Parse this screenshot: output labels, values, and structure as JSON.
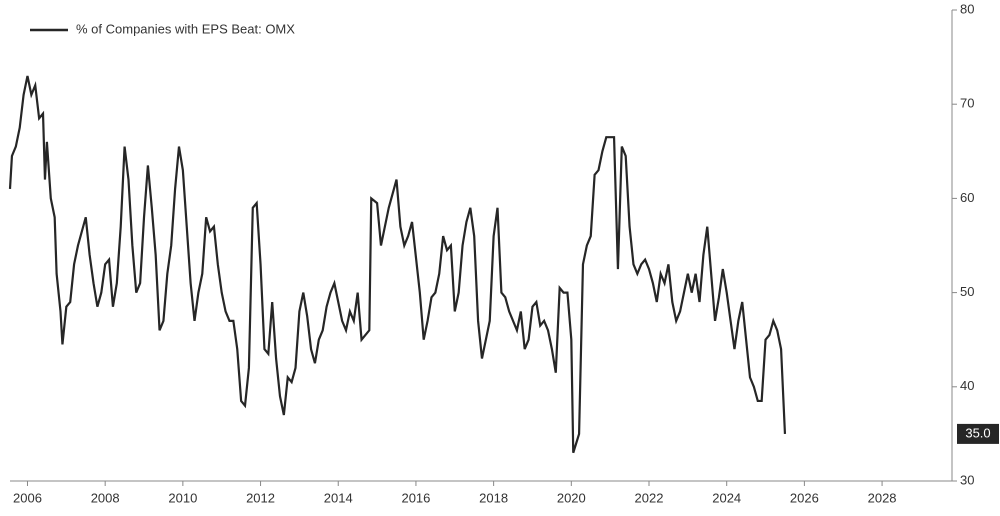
{
  "chart_data": {
    "type": "line",
    "xlim": [
      2005.55,
      2029.8
    ],
    "xticks": [
      2006,
      2008,
      2010,
      2012,
      2014,
      2016,
      2018,
      2020,
      2022,
      2024,
      2026,
      2028
    ],
    "ylim": [
      30,
      80
    ],
    "yticks": [
      30,
      40,
      50,
      60,
      70,
      80
    ],
    "legend": "top-left",
    "series": [
      {
        "name": "% of Companies with EPS Beat: OMX",
        "color": "#262626",
        "x": [
          2005.55,
          2005.6,
          2005.7,
          2005.8,
          2005.9,
          2006.0,
          2006.1,
          2006.2,
          2006.3,
          2006.4,
          2006.45,
          2006.5,
          2006.6,
          2006.7,
          2006.75,
          2006.85,
          2006.9,
          2007.0,
          2007.1,
          2007.2,
          2007.3,
          2007.4,
          2007.5,
          2007.6,
          2007.7,
          2007.8,
          2007.9,
          2008.0,
          2008.1,
          2008.2,
          2008.3,
          2008.4,
          2008.5,
          2008.6,
          2008.7,
          2008.8,
          2008.9,
          2009.0,
          2009.1,
          2009.2,
          2009.3,
          2009.4,
          2009.5,
          2009.6,
          2009.7,
          2009.8,
          2009.9,
          2010.0,
          2010.1,
          2010.2,
          2010.3,
          2010.4,
          2010.5,
          2010.6,
          2010.7,
          2010.8,
          2010.9,
          2011.0,
          2011.1,
          2011.2,
          2011.3,
          2011.4,
          2011.5,
          2011.6,
          2011.7,
          2011.8,
          2011.9,
          2012.0,
          2012.1,
          2012.2,
          2012.3,
          2012.4,
          2012.5,
          2012.6,
          2012.7,
          2012.8,
          2012.9,
          2013.0,
          2013.1,
          2013.2,
          2013.3,
          2013.4,
          2013.5,
          2013.6,
          2013.7,
          2013.8,
          2013.9,
          2014.0,
          2014.1,
          2014.2,
          2014.3,
          2014.4,
          2014.5,
          2014.6,
          2014.8,
          2014.85,
          2015.0,
          2015.1,
          2015.2,
          2015.3,
          2015.4,
          2015.5,
          2015.6,
          2015.7,
          2015.8,
          2015.9,
          2016.1,
          2016.2,
          2016.3,
          2016.4,
          2016.5,
          2016.6,
          2016.7,
          2016.8,
          2016.9,
          2017.0,
          2017.1,
          2017.2,
          2017.3,
          2017.4,
          2017.5,
          2017.6,
          2017.7,
          2017.8,
          2017.9,
          2018.0,
          2018.1,
          2018.2,
          2018.3,
          2018.4,
          2018.5,
          2018.6,
          2018.7,
          2018.8,
          2018.9,
          2019.0,
          2019.1,
          2019.2,
          2019.3,
          2019.4,
          2019.5,
          2019.6,
          2019.7,
          2019.8,
          2019.9,
          2020.0,
          2020.05,
          2020.2,
          2020.3,
          2020.4,
          2020.5,
          2020.6,
          2020.7,
          2020.8,
          2020.9,
          2021.0,
          2021.1,
          2021.2,
          2021.3,
          2021.4,
          2021.5,
          2021.6,
          2021.7,
          2021.8,
          2021.9,
          2022.0,
          2022.1,
          2022.2,
          2022.3,
          2022.4,
          2022.5,
          2022.6,
          2022.7,
          2022.8,
          2022.9,
          2023.0,
          2023.1,
          2023.2,
          2023.3,
          2023.4,
          2023.5,
          2023.6,
          2023.7,
          2023.8,
          2023.9,
          2024.0,
          2024.1,
          2024.2,
          2024.3,
          2024.4,
          2024.5,
          2024.6,
          2024.7,
          2024.8,
          2024.9,
          2025.0,
          2025.1,
          2025.2,
          2025.3,
          2025.4,
          2025.5
        ],
        "values": [
          61,
          64.5,
          65.5,
          67.5,
          71,
          73,
          71,
          72,
          68.5,
          69,
          62,
          66,
          60,
          58,
          52,
          48,
          44.5,
          48.5,
          49,
          53,
          55,
          56.5,
          58,
          54,
          51,
          48.5,
          50,
          53,
          53.5,
          48.5,
          51,
          57,
          65.5,
          62,
          55,
          50,
          51,
          58,
          63.5,
          59,
          54,
          46,
          47,
          52,
          55,
          61,
          65.5,
          63,
          57,
          51,
          47,
          50,
          52,
          58,
          56.5,
          57,
          53,
          50,
          48,
          47,
          47,
          44,
          38.5,
          38,
          42,
          59,
          59.5,
          53,
          44,
          43.5,
          49,
          43,
          39,
          37,
          41,
          40.5,
          42,
          48,
          50,
          47.5,
          44,
          42.5,
          45,
          46,
          48.5,
          50,
          51,
          49,
          47,
          46,
          48,
          47,
          50,
          45,
          46,
          60,
          59.5,
          55,
          57,
          59,
          60.5,
          62,
          57,
          55,
          56,
          57.5,
          50,
          45,
          47,
          49.5,
          50,
          52,
          56,
          54.5,
          55,
          48,
          50,
          55,
          57.5,
          59,
          56,
          47,
          43,
          45,
          47,
          56,
          59,
          50,
          49.5,
          48,
          47,
          46,
          48,
          44,
          45,
          48.5,
          49,
          46.5,
          47,
          46,
          44,
          41.5,
          50.5,
          50,
          50,
          45,
          33,
          35,
          53,
          55,
          56,
          62.5,
          63,
          65,
          66.5,
          66.5,
          66.5,
          52.5,
          65.5,
          64.5,
          57,
          53,
          52,
          53,
          53.5,
          52.5,
          51,
          49,
          52,
          51,
          53,
          49,
          47,
          48,
          50,
          52,
          50,
          52,
          49,
          54,
          57,
          52,
          47,
          49.5,
          52.5,
          50,
          47,
          44,
          47,
          49,
          45,
          41,
          40,
          38.5,
          38.5,
          45,
          45.5,
          47,
          46,
          44,
          35
        ],
        "value_labels": [
          null,
          null,
          null,
          null,
          null,
          null,
          null,
          null,
          null,
          null,
          null,
          null,
          null,
          null,
          null,
          null,
          null,
          null,
          null,
          null,
          null,
          null,
          null,
          null,
          null,
          null,
          null,
          null,
          null,
          null,
          null,
          null,
          null,
          null,
          null,
          null,
          null,
          null,
          null,
          null,
          null,
          null,
          null,
          null,
          null,
          null,
          null,
          null,
          null,
          null,
          null,
          null,
          null,
          null,
          null,
          null,
          null,
          null,
          null,
          null,
          null,
          null,
          null,
          null,
          null,
          null,
          null,
          null,
          null,
          null,
          null,
          null,
          null,
          null,
          null,
          null,
          null,
          null,
          null,
          null,
          null,
          null,
          null,
          null,
          null,
          null,
          null,
          null,
          null,
          null,
          null,
          null,
          null,
          null,
          null,
          null,
          null,
          null,
          null,
          null,
          null,
          null,
          null,
          null,
          null,
          null,
          null,
          null,
          null,
          null,
          null,
          null,
          null,
          null,
          null,
          null,
          null,
          null,
          null,
          null,
          null,
          null,
          null,
          null,
          null,
          null,
          null,
          null,
          null,
          null,
          null,
          null,
          null,
          null,
          null,
          null,
          null,
          null,
          null,
          null,
          null,
          null,
          null,
          null,
          null,
          null,
          null,
          null,
          null,
          null,
          null,
          null,
          null,
          null,
          null,
          null,
          null,
          null,
          null,
          null,
          null,
          null,
          null,
          null,
          null,
          null,
          null,
          null,
          null,
          null,
          null,
          null,
          null,
          null,
          null,
          null,
          null,
          null,
          null,
          null,
          null,
          null,
          null,
          null,
          null,
          null,
          null,
          null,
          null,
          null,
          null,
          null,
          null,
          null,
          null,
          null,
          null,
          null,
          null,
          null,
          "35.0"
        ]
      }
    ]
  }
}
